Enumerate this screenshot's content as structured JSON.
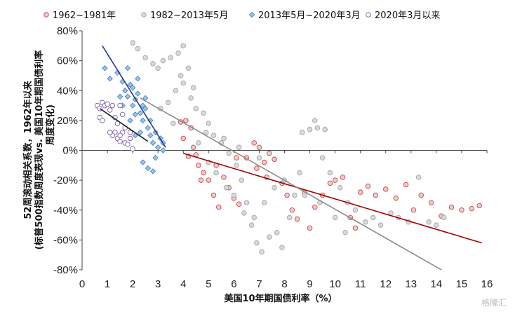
{
  "chart_data": {
    "type": "scatter",
    "title": "",
    "xlabel": "美国10年期国债利率（%）",
    "ylabel_lines": [
      "52周滚动相关系数，1962年以来",
      "(标普500指数周度表现vs. 美国10年期国债利率",
      "周度变化)"
    ],
    "xlim": [
      0,
      16
    ],
    "ylim": [
      -0.8,
      0.8
    ],
    "x_ticks": [
      0,
      1,
      2,
      3,
      4,
      5,
      6,
      7,
      8,
      9,
      10,
      11,
      12,
      13,
      14,
      15,
      16
    ],
    "y_ticks": [
      -0.8,
      -0.6,
      -0.4,
      -0.2,
      0,
      0.2,
      0.4,
      0.6,
      0.8
    ],
    "y_tick_labels": [
      "-80%",
      "-60%",
      "-40%",
      "-20%",
      "0%",
      "20%",
      "40%",
      "60%",
      "80%"
    ],
    "legend_position": "top",
    "series": [
      {
        "name": "1962~1981年",
        "marker": "circle",
        "color": "#c0504d",
        "fill": "#f2c8c8",
        "points": [
          [
            3.9,
            0.19
          ],
          [
            4.0,
            0.08
          ],
          [
            4.1,
            0.2
          ],
          [
            4.2,
            -0.04
          ],
          [
            4.3,
            0.15
          ],
          [
            4.4,
            0.02
          ],
          [
            4.5,
            -0.03
          ],
          [
            4.6,
            -0.1
          ],
          [
            4.8,
            -0.15
          ],
          [
            5.0,
            -0.2
          ],
          [
            5.2,
            -0.3
          ],
          [
            5.4,
            -0.38
          ],
          [
            5.6,
            -0.18
          ],
          [
            5.8,
            -0.25
          ],
          [
            6.0,
            -0.32
          ],
          [
            6.2,
            -0.36
          ],
          [
            6.5,
            -0.05
          ],
          [
            6.8,
            0.05
          ],
          [
            7.0,
            0.02
          ],
          [
            7.2,
            -0.08
          ],
          [
            7.4,
            -0.02
          ],
          [
            7.6,
            -0.06
          ],
          [
            7.9,
            -0.22
          ],
          [
            8.1,
            -0.3
          ],
          [
            8.3,
            -0.4
          ],
          [
            8.5,
            -0.46
          ],
          [
            8.8,
            -0.28
          ],
          [
            9.0,
            -0.52
          ],
          [
            9.2,
            -0.38
          ],
          [
            9.5,
            -0.3
          ],
          [
            9.8,
            -0.22
          ],
          [
            10.0,
            -0.2
          ],
          [
            10.3,
            -0.18
          ],
          [
            10.6,
            -0.45
          ],
          [
            10.8,
            -0.52
          ],
          [
            11.0,
            -0.28
          ],
          [
            11.3,
            -0.24
          ],
          [
            11.6,
            -0.3
          ],
          [
            12.0,
            -0.26
          ],
          [
            12.4,
            -0.32
          ],
          [
            12.8,
            -0.23
          ],
          [
            13.1,
            -0.4
          ],
          [
            13.4,
            -0.3
          ],
          [
            13.8,
            -0.35
          ],
          [
            14.2,
            -0.44
          ],
          [
            14.6,
            -0.38
          ],
          [
            15.0,
            -0.4
          ],
          [
            15.4,
            -0.39
          ],
          [
            15.7,
            -0.37
          ],
          [
            6.9,
            -0.12
          ],
          [
            7.3,
            -0.18
          ],
          [
            5.3,
            -0.1
          ],
          [
            4.7,
            -0.2
          ],
          [
            6.1,
            -0.05
          ]
        ]
      },
      {
        "name": "1982~2013年5月",
        "marker": "circle",
        "color": "#a6a6a6",
        "fill": "#d9d9d9",
        "points": [
          [
            2.0,
            0.72
          ],
          [
            2.2,
            0.68
          ],
          [
            2.5,
            0.62
          ],
          [
            2.8,
            0.58
          ],
          [
            3.0,
            0.55
          ],
          [
            3.2,
            0.6
          ],
          [
            3.5,
            0.62
          ],
          [
            3.8,
            0.65
          ],
          [
            4.0,
            0.7
          ],
          [
            4.2,
            0.55
          ],
          [
            4.0,
            0.45
          ],
          [
            3.7,
            0.4
          ],
          [
            3.4,
            0.32
          ],
          [
            3.1,
            0.28
          ],
          [
            3.6,
            0.18
          ],
          [
            4.3,
            0.35
          ],
          [
            4.5,
            0.28
          ],
          [
            4.8,
            0.25
          ],
          [
            5.0,
            0.18
          ],
          [
            5.2,
            0.1
          ],
          [
            5.5,
            0.05
          ],
          [
            5.8,
            -0.02
          ],
          [
            6.1,
            -0.1
          ],
          [
            6.3,
            -0.2
          ],
          [
            6.5,
            -0.35
          ],
          [
            6.7,
            -0.5
          ],
          [
            6.9,
            -0.62
          ],
          [
            7.1,
            -0.68
          ],
          [
            7.4,
            -0.58
          ],
          [
            7.7,
            -0.55
          ],
          [
            7.9,
            -0.65
          ],
          [
            8.2,
            -0.45
          ],
          [
            8.4,
            -0.3
          ],
          [
            8.6,
            -0.15
          ],
          [
            8.7,
            0.12
          ],
          [
            9.0,
            0.14
          ],
          [
            9.3,
            0.15
          ],
          [
            9.6,
            0.14
          ],
          [
            9.2,
            0.2
          ],
          [
            9.5,
            -0.05
          ],
          [
            9.8,
            -0.15
          ],
          [
            10.2,
            -0.25
          ],
          [
            10.5,
            -0.35
          ],
          [
            10.8,
            -0.4
          ],
          [
            11.2,
            -0.48
          ],
          [
            11.5,
            -0.45
          ],
          [
            11.8,
            -0.5
          ],
          [
            12.2,
            -0.42
          ],
          [
            12.5,
            -0.45
          ],
          [
            12.9,
            -0.48
          ],
          [
            13.3,
            -0.18
          ],
          [
            13.7,
            -0.48
          ],
          [
            14.0,
            -0.5
          ],
          [
            14.3,
            -0.45
          ],
          [
            4.6,
            0.05
          ],
          [
            5.0,
            -0.08
          ],
          [
            5.3,
            -0.15
          ],
          [
            5.7,
            -0.25
          ],
          [
            6.0,
            -0.3
          ],
          [
            6.4,
            -0.42
          ],
          [
            6.8,
            -0.45
          ],
          [
            7.2,
            -0.35
          ],
          [
            7.6,
            -0.25
          ],
          [
            8.0,
            -0.2
          ],
          [
            8.8,
            -0.3
          ],
          [
            9.4,
            -0.35
          ],
          [
            10.0,
            -0.45
          ],
          [
            10.4,
            -0.55
          ],
          [
            7.0,
            -0.05
          ],
          [
            6.2,
            0.02
          ],
          [
            5.6,
            0.08
          ],
          [
            4.9,
            0.12
          ],
          [
            4.4,
            0.42
          ],
          [
            3.9,
            0.5
          ]
        ]
      },
      {
        "name": "2013年5月~2020年3月",
        "marker": "diamond",
        "color": "#4a86c5",
        "fill": "#9cc3e8",
        "points": [
          [
            1.4,
            0.52
          ],
          [
            1.6,
            0.46
          ],
          [
            1.7,
            0.4
          ],
          [
            1.8,
            0.36
          ],
          [
            1.9,
            0.44
          ],
          [
            2.0,
            0.3
          ],
          [
            2.1,
            0.34
          ],
          [
            2.2,
            0.38
          ],
          [
            2.3,
            0.25
          ],
          [
            2.4,
            0.2
          ],
          [
            2.5,
            0.28
          ],
          [
            2.6,
            0.15
          ],
          [
            2.7,
            0.1
          ],
          [
            2.8,
            0.05
          ],
          [
            2.9,
            -0.05
          ],
          [
            3.0,
            0.02
          ],
          [
            3.1,
            0.08
          ],
          [
            3.2,
            0.0
          ],
          [
            2.4,
            -0.08
          ],
          [
            2.6,
            -0.12
          ],
          [
            2.8,
            -0.14
          ],
          [
            2.1,
            0.1
          ],
          [
            1.9,
            0.2
          ],
          [
            1.8,
            0.55
          ],
          [
            2.2,
            0.48
          ],
          [
            2.0,
            0.42
          ],
          [
            1.5,
            0.36
          ],
          [
            2.5,
            0.35
          ],
          [
            2.3,
            0.12
          ],
          [
            2.7,
            0.2
          ],
          [
            1.6,
            0.3
          ],
          [
            2.9,
            0.12
          ],
          [
            2.1,
            0.24
          ],
          [
            2.4,
            0.3
          ],
          [
            3.2,
            0.05
          ],
          [
            0.9,
            0.55
          ],
          [
            1.1,
            0.48
          ]
        ]
      },
      {
        "name": "2020年3月以来",
        "marker": "circle",
        "color": "#7b5da8",
        "fill": "#ffffff",
        "points": [
          [
            0.6,
            0.3
          ],
          [
            0.7,
            0.28
          ],
          [
            0.8,
            0.32
          ],
          [
            0.9,
            0.3
          ],
          [
            1.0,
            0.31
          ],
          [
            1.1,
            0.27
          ],
          [
            1.2,
            0.3
          ],
          [
            1.3,
            0.22
          ],
          [
            1.4,
            0.18
          ],
          [
            1.5,
            0.3
          ],
          [
            1.3,
            0.12
          ],
          [
            1.2,
            0.1
          ],
          [
            1.4,
            0.08
          ],
          [
            1.5,
            0.06
          ],
          [
            1.6,
            0.12
          ],
          [
            1.7,
            0.05
          ],
          [
            1.8,
            0.04
          ],
          [
            1.9,
            0.08
          ],
          [
            2.0,
            0.01
          ],
          [
            1.7,
            0.15
          ],
          [
            1.6,
            0.24
          ],
          [
            1.5,
            0.1
          ],
          [
            1.1,
            0.12
          ],
          [
            0.7,
            0.22
          ],
          [
            0.8,
            0.2
          ],
          [
            1.9,
            0.12
          ]
        ]
      }
    ],
    "trendlines": [
      {
        "series": "1962~1981年",
        "color": "#a00000",
        "from": [
          4.0,
          -0.02
        ],
        "to": [
          15.8,
          -0.62
        ]
      },
      {
        "series": "1982~2013年5月",
        "color": "#8c8c8c",
        "from": [
          2.3,
          0.35
        ],
        "to": [
          14.2,
          -0.8
        ]
      },
      {
        "series": "2013年5月~2020年3月",
        "color": "#1f3a93",
        "from": [
          0.8,
          0.7
        ],
        "to": [
          3.3,
          0.02
        ]
      },
      {
        "series": "2020年3月以来",
        "color": "#222222",
        "from": [
          0.7,
          0.28
        ],
        "to": [
          2.6,
          0.06
        ]
      }
    ]
  },
  "watermark": "格隆汇"
}
